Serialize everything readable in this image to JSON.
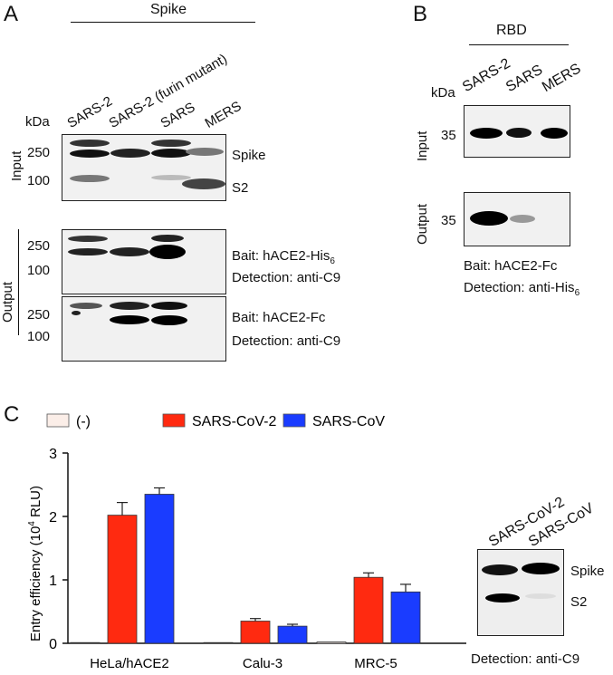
{
  "panelA": {
    "letter": "A",
    "header": "Spike",
    "lanes": [
      "SARS-2",
      "SARS-2 (furin mutant)",
      "SARS",
      "MERS"
    ],
    "kda": "kDa",
    "input": {
      "label": "Input",
      "markers": [
        "250",
        "100"
      ],
      "band_labels": [
        "Spike",
        "S2"
      ]
    },
    "output": {
      "label": "Output",
      "blot1": {
        "markers": [
          "250",
          "100"
        ],
        "bait": "Bait: hACE2-His",
        "bait_sub": "6",
        "detection": "Detection: anti-C9"
      },
      "blot2": {
        "markers": [
          "250",
          "100"
        ],
        "bait": "Bait: hACE2-Fc",
        "detection": "Detection: anti-C9"
      }
    }
  },
  "panelB": {
    "letter": "B",
    "header": "RBD",
    "kda": "kDa",
    "lanes": [
      "SARS-2",
      "SARS",
      "MERS"
    ],
    "input": {
      "label": "Input",
      "marker": "35"
    },
    "output": {
      "label": "Output",
      "marker": "35"
    },
    "bait": "Bait: hACE2-Fc",
    "detection": "Detection: anti-His",
    "detection_sub": "6"
  },
  "panelC": {
    "letter": "C",
    "blot": {
      "lanes": [
        "SARS-CoV-2",
        "SARS-CoV"
      ],
      "band_labels": [
        "Spike",
        "S2"
      ],
      "detection": "Detection: anti-C9"
    }
  },
  "colors": {
    "neg": "#fbeee8",
    "sars2": "#ff2a10",
    "sars": "#1a3cff"
  },
  "chart_data": {
    "type": "bar",
    "categories": [
      "HeLa/hACE2",
      "Calu-3",
      "MRC-5"
    ],
    "ylabel": "Entry efficiency (10",
    "ylabel_sup": "4",
    "ylabel_end": " RLU)",
    "ylim": [
      0,
      3
    ],
    "yticks": [
      "0",
      "1",
      "2",
      "3"
    ],
    "legend_placement": "top",
    "series": [
      {
        "name": "(-)",
        "values": [
          0.01,
          0.01,
          0.02
        ],
        "errors": [
          0,
          0,
          0
        ]
      },
      {
        "name": "SARS-CoV-2",
        "values": [
          2.02,
          0.35,
          1.04
        ],
        "errors": [
          0.2,
          0.04,
          0.07
        ]
      },
      {
        "name": "SARS-CoV",
        "values": [
          2.35,
          0.27,
          0.81
        ],
        "errors": [
          0.1,
          0.03,
          0.12
        ]
      }
    ]
  }
}
